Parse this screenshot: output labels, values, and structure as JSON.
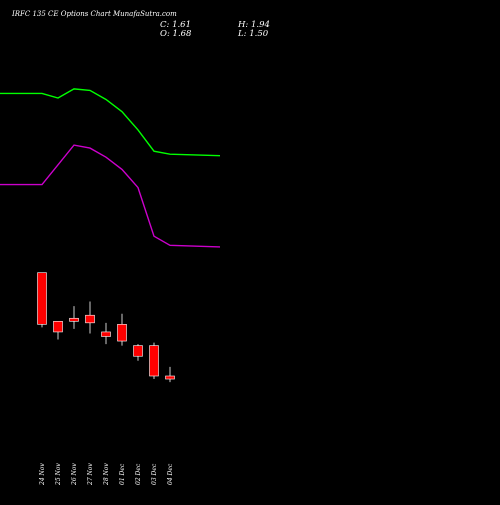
{
  "title": "IRFC 135 CE Options Chart MunafaSutra.com",
  "ohlc_readout": {
    "close": "C: 1.61",
    "open": "O: 1.68",
    "high": "H: 1.94",
    "low": "L: 1.50"
  },
  "colors": {
    "background": "#000000",
    "text": "#ffffff",
    "candle": "#ff0000",
    "wick": "#ffffff",
    "upper_band": "#00ff00",
    "lower_band": "#cc00cc"
  },
  "chart_data": {
    "type": "candlestick",
    "title": "IRFC 135 CE Options Chart MunafaSutra.com",
    "categories": [
      "24 Nov",
      "25 Nov",
      "26 Nov",
      "27 Nov",
      "28 Nov",
      "01 Dec",
      "02 Dec",
      "03 Dec",
      "04 Dec"
    ],
    "candles": [
      {
        "date": "24 Nov",
        "open": 7.0,
        "high": 7.0,
        "low": 5.2,
        "close": 5.3
      },
      {
        "date": "25 Nov",
        "open": 5.4,
        "high": 5.4,
        "low": 4.8,
        "close": 5.05
      },
      {
        "date": "26 Nov",
        "open": 5.4,
        "high": 5.9,
        "low": 5.15,
        "close": 5.5
      },
      {
        "date": "27 Nov",
        "open": 5.6,
        "high": 6.05,
        "low": 5.0,
        "close": 5.35
      },
      {
        "date": "28 Nov",
        "open": 5.05,
        "high": 5.35,
        "low": 4.65,
        "close": 4.9
      },
      {
        "date": "01 Dec",
        "open": 5.3,
        "high": 5.65,
        "low": 4.6,
        "close": 4.75
      },
      {
        "date": "02 Dec",
        "open": 4.6,
        "high": 4.65,
        "low": 4.1,
        "close": 4.25
      },
      {
        "date": "03 Dec",
        "open": 4.6,
        "high": 4.7,
        "low": 3.5,
        "close": 3.6
      },
      {
        "date": "04 Dec",
        "open": 3.6,
        "high": 3.9,
        "low": 3.4,
        "close": 3.5
      }
    ],
    "ylim": [
      1.0,
      14.0
    ],
    "grid": false,
    "series": [
      {
        "type": "line",
        "x": [
          -1,
          0,
          1,
          2,
          3,
          4,
          5,
          6,
          7,
          8
        ],
        "values": [
          12.9,
          12.9,
          12.75,
          13.05,
          13.0,
          12.7,
          12.3,
          11.7,
          11.0,
          10.9
        ],
        "color": "#00ff00"
      },
      {
        "type": "line",
        "x": [
          -1,
          0,
          2,
          3,
          4,
          5,
          6,
          7,
          8
        ],
        "values": [
          9.9,
          9.9,
          11.2,
          11.1,
          10.8,
          10.4,
          9.8,
          8.2,
          7.9
        ],
        "color": "#cc00cc"
      }
    ]
  }
}
